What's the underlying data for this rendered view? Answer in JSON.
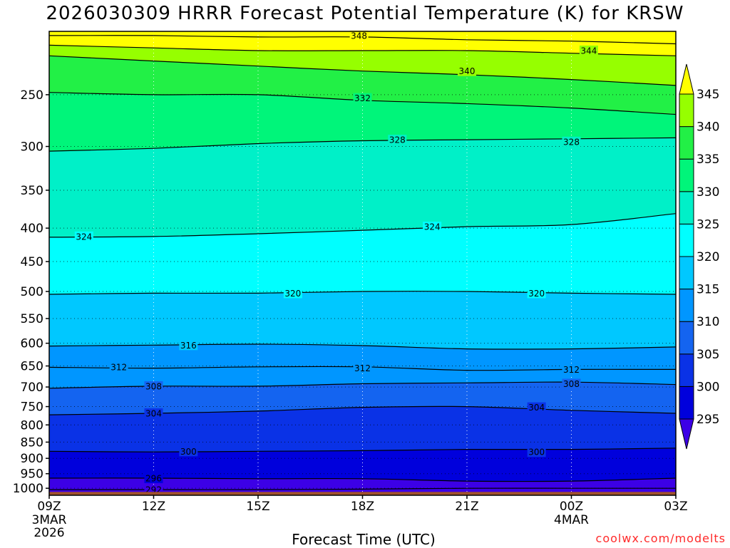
{
  "title": "2026030309 HRRR Forecast Potential Temperature (K) for KRSW",
  "xlabel": "Forecast Time (UTC)",
  "credit": "coolwx.com/modelts",
  "chart_data": {
    "type": "contour",
    "title": "2026030309 HRRR Forecast Potential Temperature (K) for KRSW",
    "xlabel": "Forecast Time (UTC)",
    "ylabel": "",
    "x_ticks": [
      {
        "hour": 0,
        "label": "09Z",
        "sub": [
          "3MAR",
          "2026"
        ]
      },
      {
        "hour": 3,
        "label": "12Z",
        "sub": []
      },
      {
        "hour": 6,
        "label": "15Z",
        "sub": []
      },
      {
        "hour": 9,
        "label": "18Z",
        "sub": []
      },
      {
        "hour": 12,
        "label": "21Z",
        "sub": []
      },
      {
        "hour": 15,
        "label": "00Z",
        "sub": [
          "4MAR"
        ]
      },
      {
        "hour": 18,
        "label": "03Z",
        "sub": []
      }
    ],
    "xlim": [
      0,
      18
    ],
    "y_ticks": [
      250,
      300,
      350,
      400,
      450,
      500,
      550,
      600,
      650,
      700,
      750,
      800,
      850,
      900,
      950,
      1000
    ],
    "ylim": [
      1025,
      200
    ],
    "y_scale": "log-pressure",
    "grid": "dotted",
    "colorbar": {
      "levels": [
        295,
        300,
        305,
        310,
        315,
        320,
        325,
        330,
        335,
        340,
        345
      ],
      "colors": [
        "#3c00e6",
        "#0000dc",
        "#0a32e6",
        "#1464f0",
        "#0096ff",
        "#00c8ff",
        "#00ffff",
        "#00f0c8",
        "#00f57a",
        "#22f046",
        "#96ff00",
        "#ffff00"
      ]
    },
    "contour_lines": [
      {
        "value": 292,
        "pressures": [
          1005,
          1005,
          1005,
          1003,
          1000,
          1000,
          1000
        ]
      },
      {
        "value": 296,
        "pressures": [
          965,
          965,
          967,
          967,
          975,
          975,
          965
        ]
      },
      {
        "value": 300,
        "pressures": [
          878,
          880,
          878,
          876,
          872,
          872,
          868
        ]
      },
      {
        "value": 304,
        "pressures": [
          772,
          768,
          762,
          752,
          750,
          760,
          768
        ]
      },
      {
        "value": 308,
        "pressures": [
          703,
          698,
          698,
          692,
          690,
          688,
          694
        ]
      },
      {
        "value": 312,
        "pressures": [
          653,
          655,
          652,
          652,
          660,
          658,
          658
        ]
      },
      {
        "value": 316,
        "pressures": [
          606,
          604,
          602,
          605,
          612,
          612,
          608
        ]
      },
      {
        "value": 320,
        "pressures": [
          505,
          503,
          503,
          500,
          500,
          503,
          505
        ]
      },
      {
        "value": 324,
        "pressures": [
          413,
          412,
          408,
          403,
          398,
          395,
          380
        ]
      },
      {
        "value": 328,
        "pressures": [
          305,
          302,
          297,
          294,
          293,
          292,
          291
        ]
      },
      {
        "value": 332,
        "pressures": [
          248,
          250,
          250,
          255,
          258,
          262,
          268
        ]
      },
      {
        "value": 340,
        "pressures": [
          218,
          222,
          226,
          230,
          233,
          237,
          242
        ]
      },
      {
        "value": 344,
        "pressures": [
          210,
          212,
          214,
          214,
          214,
          216,
          218
        ]
      },
      {
        "value": 348,
        "pressures": [
          203,
          203,
          204,
          204,
          206,
          207,
          209
        ]
      }
    ],
    "line_labels": [
      {
        "value": 348,
        "hour": 8.9,
        "p": 203
      },
      {
        "value": 344,
        "hour": 15.5,
        "p": 214
      },
      {
        "value": 340,
        "hour": 12.0,
        "p": 230
      },
      {
        "value": 332,
        "hour": 9.0,
        "p": 253
      },
      {
        "value": 328,
        "hour": 10.0,
        "p": 293
      },
      {
        "value": 328,
        "hour": 15.0,
        "p": 295
      },
      {
        "value": 324,
        "hour": 1.0,
        "p": 412
      },
      {
        "value": 324,
        "hour": 11.0,
        "p": 398
      },
      {
        "value": 320,
        "hour": 7.0,
        "p": 503
      },
      {
        "value": 320,
        "hour": 14.0,
        "p": 503
      },
      {
        "value": 316,
        "hour": 4.0,
        "p": 604
      },
      {
        "value": 312,
        "hour": 2.0,
        "p": 652
      },
      {
        "value": 312,
        "hour": 9.0,
        "p": 655
      },
      {
        "value": 312,
        "hour": 15.0,
        "p": 658
      },
      {
        "value": 308,
        "hour": 3.0,
        "p": 698
      },
      {
        "value": 308,
        "hour": 15.0,
        "p": 692
      },
      {
        "value": 304,
        "hour": 3.0,
        "p": 768
      },
      {
        "value": 304,
        "hour": 14.0,
        "p": 752
      },
      {
        "value": 300,
        "hour": 4.0,
        "p": 878
      },
      {
        "value": 300,
        "hour": 14.0,
        "p": 880
      },
      {
        "value": 296,
        "hour": 3.0,
        "p": 965
      },
      {
        "value": 292,
        "hour": 3.0,
        "p": 1005
      }
    ],
    "ground": {
      "p_top": 1025,
      "color": "#a0522d"
    }
  }
}
